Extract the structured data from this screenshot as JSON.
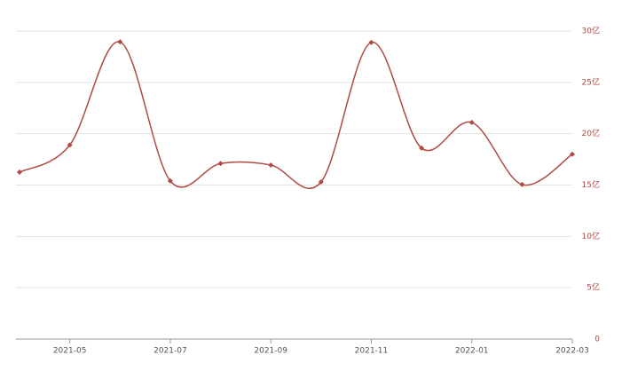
{
  "chart_data": {
    "type": "line",
    "categories": [
      null,
      "2021-05",
      null,
      "2021-07",
      null,
      "2021-09",
      null,
      "2021-11",
      null,
      "2022-01",
      null,
      "2022-03"
    ],
    "series": [
      {
        "color": "#b04a44",
        "values": [
          16.25,
          18.9,
          28.95,
          15.4,
          17.1,
          16.95,
          15.3,
          28.9,
          18.6,
          21.1,
          15.05,
          18.0
        ]
      }
    ],
    "ylim": [
      0,
      30
    ],
    "yticks": [
      0,
      {
        "value": 5,
        "label": "5亿"
      },
      {
        "value": 10,
        "label": "10亿"
      },
      {
        "value": 15,
        "label": "15亿"
      },
      {
        "value": 20,
        "label": "20亿"
      },
      {
        "value": 25,
        "label": "25亿"
      },
      {
        "value": 30,
        "label": "30亿"
      }
    ],
    "grid": true,
    "smooth": true
  }
}
